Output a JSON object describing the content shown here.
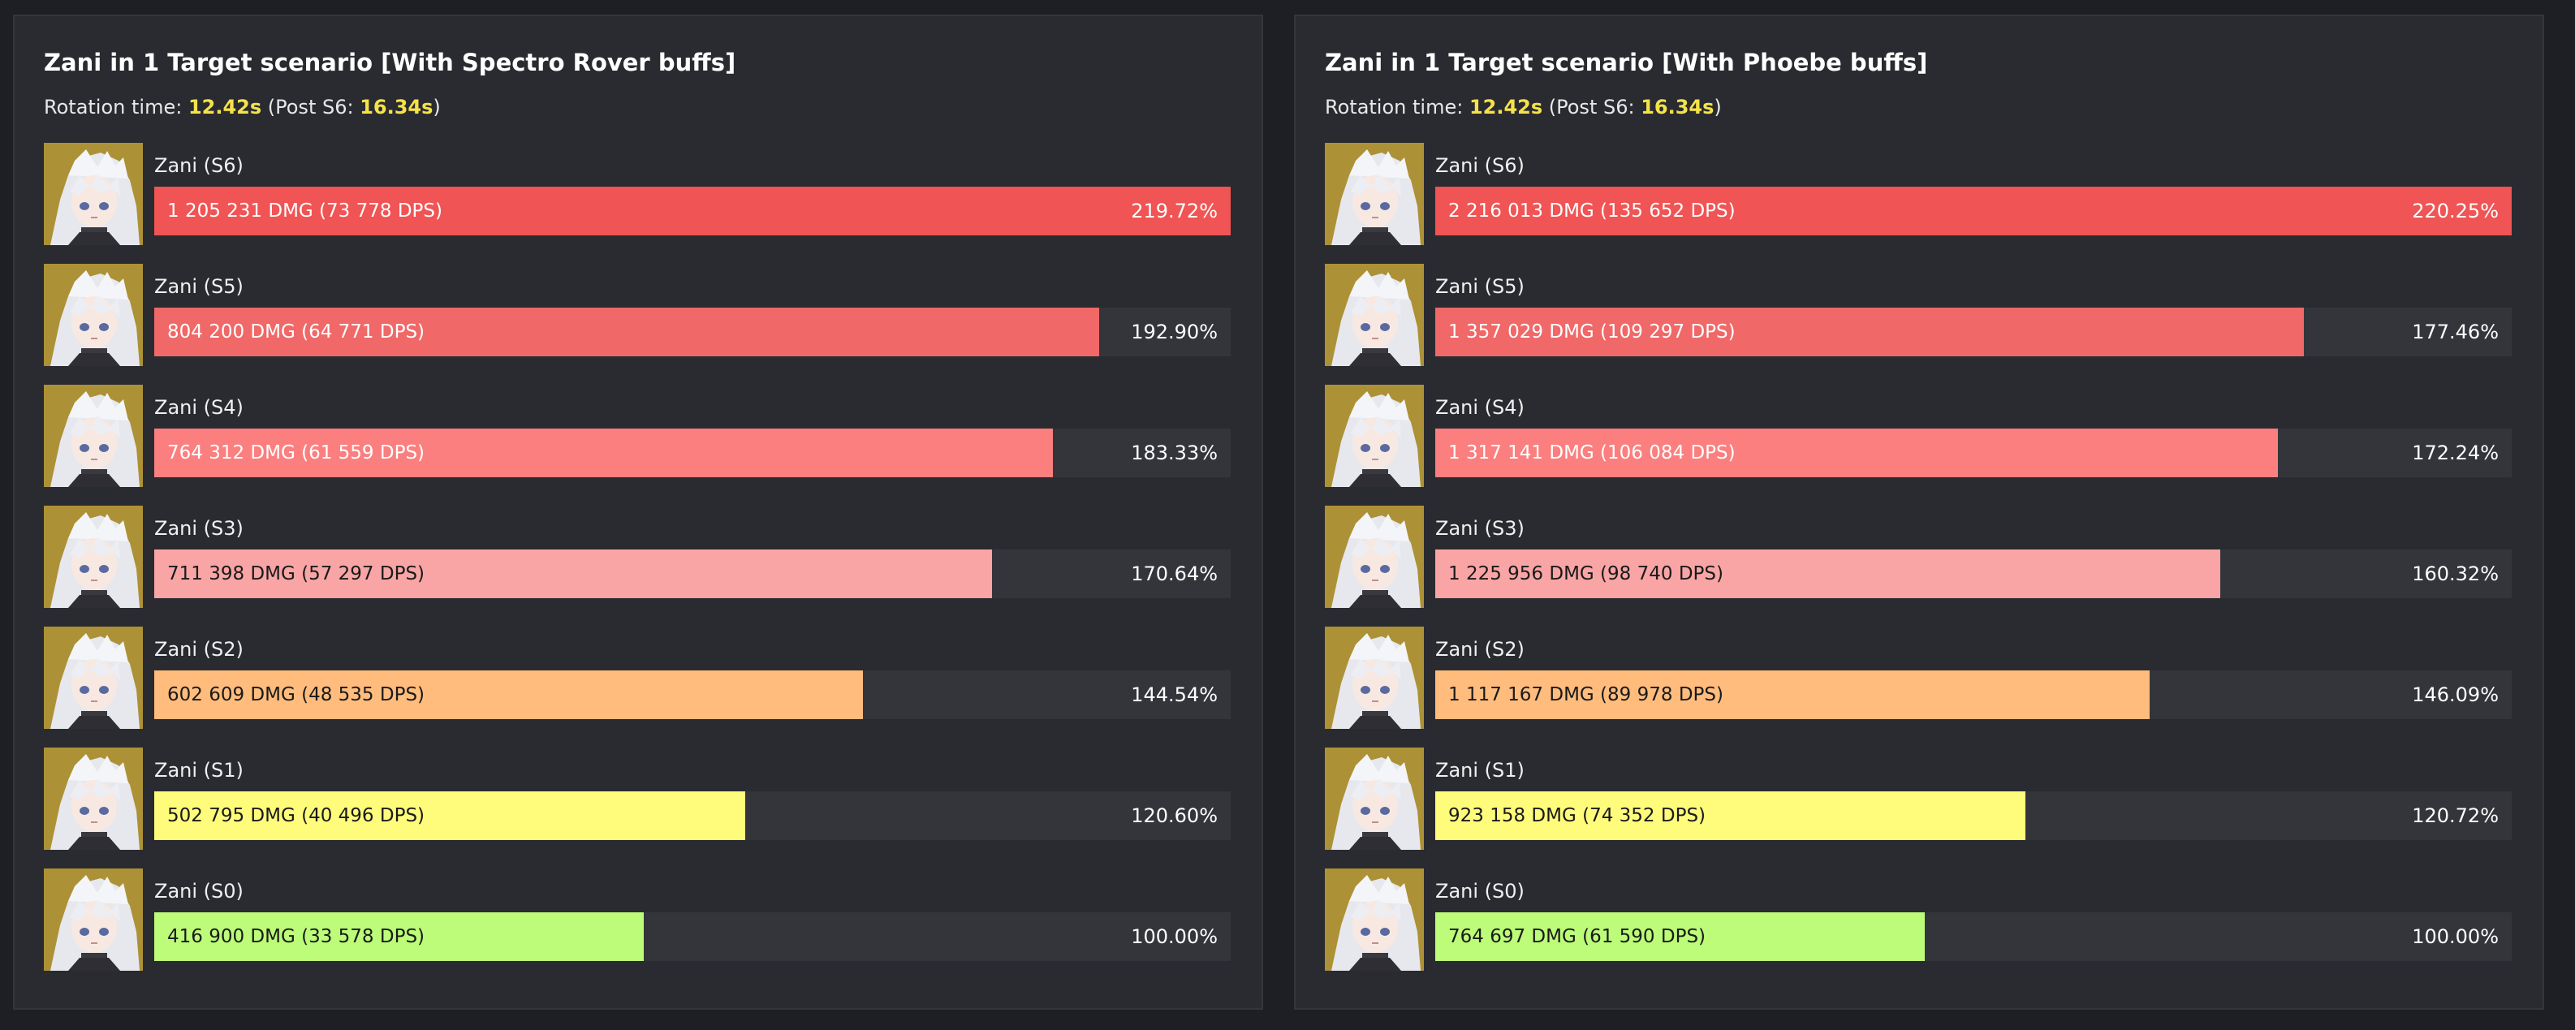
{
  "colors": {
    "S6": "#f05454",
    "S5": "#f06868",
    "S4": "#fb7f7f",
    "S3": "#f9a5a5",
    "S2": "#ffbc7d",
    "S1": "#fffc7c",
    "S0": "#bcfc78",
    "highlight": "#f5e24a",
    "text_light": "#ffffff",
    "text_dark": "#1a1a1a"
  },
  "chart_data": [
    {
      "type": "bar",
      "orientation": "horizontal",
      "title": "Zani in 1 Target scenario [With Spectro Rover buffs]",
      "rotation": {
        "prefix": "Rotation time: ",
        "time": "12.42s",
        "mid": " (Post S6: ",
        "post_s6": "16.34s",
        "suffix": ")"
      },
      "avatar_icon": "zani-portrait-icon",
      "categories": [
        "Zani (S6)",
        "Zani (S5)",
        "Zani (S4)",
        "Zani (S3)",
        "Zani (S2)",
        "Zani (S1)",
        "Zani (S0)"
      ],
      "keys": [
        "S6",
        "S5",
        "S4",
        "S3",
        "S2",
        "S1",
        "S0"
      ],
      "values": [
        1205231,
        804200,
        764312,
        711398,
        602609,
        502795,
        416900
      ],
      "dps": [
        73778,
        64771,
        61559,
        57297,
        48535,
        40496,
        33578
      ],
      "bar_labels": [
        "1 205 231 DMG (73 778 DPS)",
        "804 200 DMG (64 771 DPS)",
        "764 312 DMG (61 559 DPS)",
        "711 398 DMG (57 297 DPS)",
        "602 609 DMG (48 535 DPS)",
        "502 795 DMG (40 496 DPS)",
        "416 900 DMG (33 578 DPS)"
      ],
      "percents": [
        "219.72%",
        "192.90%",
        "183.33%",
        "170.64%",
        "144.54%",
        "120.60%",
        "100.00%"
      ],
      "fill_fraction": [
        1.0,
        0.878,
        0.835,
        0.778,
        0.658,
        0.549,
        0.455
      ]
    },
    {
      "type": "bar",
      "orientation": "horizontal",
      "title": "Zani in 1 Target scenario [With Phoebe buffs]",
      "rotation": {
        "prefix": "Rotation time: ",
        "time": "12.42s",
        "mid": " (Post S6: ",
        "post_s6": "16.34s",
        "suffix": ")"
      },
      "avatar_icon": "zani-portrait-icon",
      "categories": [
        "Zani (S6)",
        "Zani (S5)",
        "Zani (S4)",
        "Zani (S3)",
        "Zani (S2)",
        "Zani (S1)",
        "Zani (S0)"
      ],
      "keys": [
        "S6",
        "S5",
        "S4",
        "S3",
        "S2",
        "S1",
        "S0"
      ],
      "values": [
        2216013,
        1357029,
        1317141,
        1225956,
        1117167,
        923158,
        764697
      ],
      "dps": [
        135652,
        109297,
        106084,
        98740,
        89978,
        74352,
        61590
      ],
      "bar_labels": [
        "2 216 013 DMG (135 652 DPS)",
        "1 357 029 DMG (109 297 DPS)",
        "1 317 141 DMG (106 084 DPS)",
        "1 225 956 DMG (98 740 DPS)",
        "1 117 167 DMG (89 978 DPS)",
        "923 158 DMG (74 352 DPS)",
        "764 697 DMG (61 590 DPS)"
      ],
      "percents": [
        "220.25%",
        "177.46%",
        "172.24%",
        "160.32%",
        "146.09%",
        "120.72%",
        "100.00%"
      ],
      "fill_fraction": [
        1.0,
        0.807,
        0.783,
        0.729,
        0.664,
        0.548,
        0.455
      ]
    }
  ]
}
